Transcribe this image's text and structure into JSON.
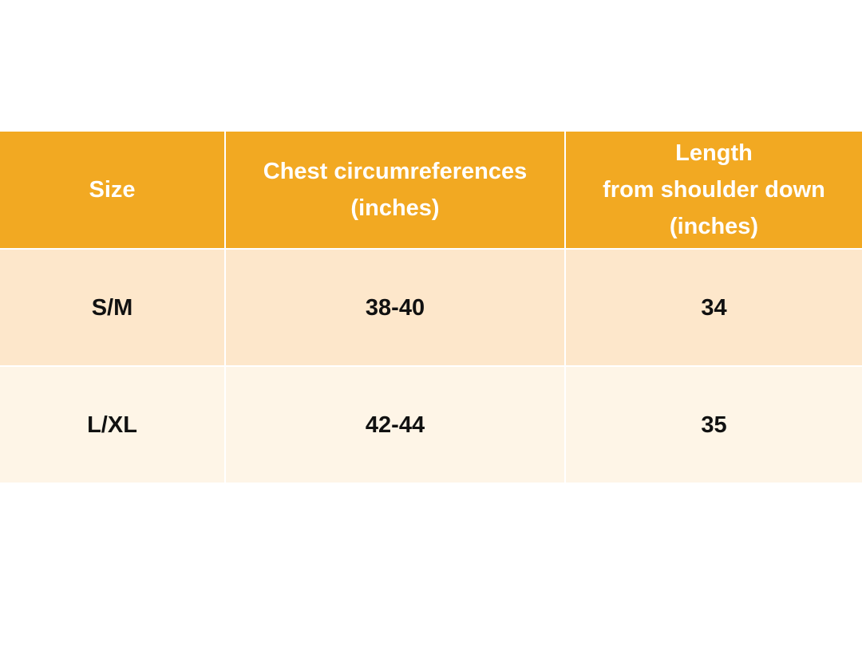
{
  "table": {
    "header": [
      [
        "Size"
      ],
      [
        "Chest circumreferences",
        "(inches)"
      ],
      [
        "Length",
        "from shoulder down",
        "(inches)"
      ]
    ],
    "rows": [
      [
        "S/M",
        "38-40",
        "34"
      ],
      [
        "L/XL",
        "42-44",
        "35"
      ]
    ]
  }
}
